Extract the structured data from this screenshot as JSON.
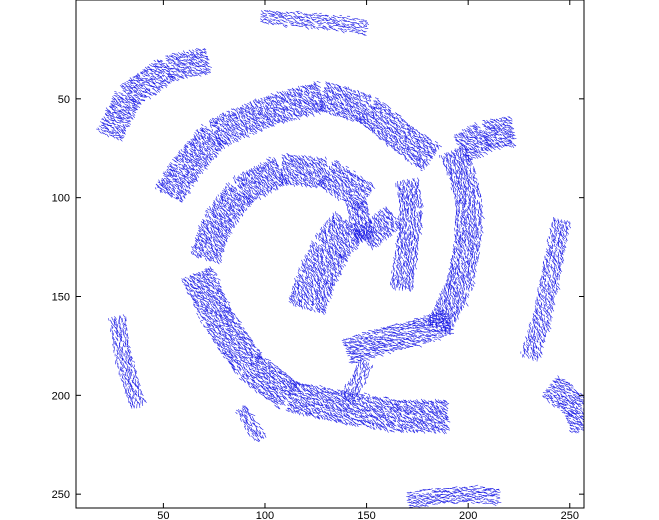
{
  "chart_data": {
    "type": "quiver",
    "title": "",
    "xlabel": "",
    "ylabel": "",
    "xlim": [
      7,
      257
    ],
    "ylim": [
      257,
      0
    ],
    "y_axis_direction": "down",
    "grid": false,
    "vector_color": "#1f1fe6",
    "x_ticks": [
      50,
      100,
      150,
      200,
      250
    ],
    "y_ticks": [
      50,
      100,
      150,
      200,
      250
    ],
    "x_tick_labels": [
      "50",
      "100",
      "150",
      "200",
      "250"
    ],
    "y_tick_labels": [
      "50",
      "100",
      "150",
      "200",
      "250"
    ],
    "bands": [
      {
        "name": "band-top-strip",
        "points": [
          [
            98,
            8
          ],
          [
            120,
            10
          ],
          [
            140,
            12
          ],
          [
            150,
            14
          ]
        ],
        "width": 6,
        "angle": 20
      },
      {
        "name": "band-upper-left-arc",
        "points": [
          [
            23,
            68
          ],
          [
            32,
            48
          ],
          [
            52,
            34
          ],
          [
            72,
            30
          ]
        ],
        "width": 12,
        "angle": 30
      },
      {
        "name": "band-outer-arc",
        "points": [
          [
            52,
            98
          ],
          [
            60,
            85
          ],
          [
            75,
            67
          ],
          [
            100,
            56
          ],
          [
            128,
            48
          ],
          [
            150,
            55
          ],
          [
            168,
            70
          ],
          [
            182,
            80
          ]
        ],
        "width": 14,
        "angle": 45
      },
      {
        "name": "band-middle-arc",
        "points": [
          [
            70,
            130
          ],
          [
            76,
            112
          ],
          [
            88,
            96
          ],
          [
            108,
            85
          ],
          [
            130,
            87
          ],
          [
            150,
            100
          ]
        ],
        "width": 14,
        "angle": 50
      },
      {
        "name": "band-inner-blob",
        "points": [
          [
            120,
            155
          ],
          [
            125,
            140
          ],
          [
            132,
            125
          ],
          [
            142,
            112
          ],
          [
            152,
            110
          ],
          [
            160,
            120
          ]
        ],
        "width": 18,
        "angle": 60
      },
      {
        "name": "band-lower-arc",
        "points": [
          [
            66,
            138
          ],
          [
            76,
            160
          ],
          [
            92,
            185
          ],
          [
            112,
            200
          ],
          [
            135,
            205
          ],
          [
            165,
            210
          ],
          [
            190,
            210
          ]
        ],
        "width": 15,
        "angle": 40
      },
      {
        "name": "band-right-arc-a",
        "points": [
          [
            167,
            145
          ],
          [
            170,
            125
          ],
          [
            172,
            105
          ],
          [
            170,
            90
          ]
        ],
        "width": 10,
        "angle": 80
      },
      {
        "name": "band-right-arc-b",
        "points": [
          [
            185,
            165
          ],
          [
            195,
            145
          ],
          [
            200,
            120
          ],
          [
            200,
            100
          ],
          [
            196,
            85
          ],
          [
            192,
            75
          ]
        ],
        "width": 12,
        "angle": 75
      },
      {
        "name": "band-center-link",
        "points": [
          [
            140,
            178
          ],
          [
            158,
            172
          ],
          [
            175,
            168
          ],
          [
            190,
            162
          ]
        ],
        "width": 12,
        "angle": 10
      },
      {
        "name": "band-upper-right-patch",
        "points": [
          [
            196,
            75
          ],
          [
            208,
            68
          ],
          [
            222,
            66
          ]
        ],
        "width": 14,
        "angle": 30
      },
      {
        "name": "band-far-right",
        "points": [
          [
            230,
            180
          ],
          [
            236,
            160
          ],
          [
            240,
            140
          ],
          [
            244,
            120
          ],
          [
            246,
            110
          ]
        ],
        "width": 8,
        "angle": 70
      },
      {
        "name": "band-left-small",
        "points": [
          [
            27,
            160
          ],
          [
            30,
            178
          ],
          [
            34,
            195
          ],
          [
            38,
            205
          ]
        ],
        "width": 7,
        "angle": 75
      },
      {
        "name": "band-lower-left-small",
        "points": [
          [
            88,
            206
          ],
          [
            93,
            215
          ],
          [
            98,
            222
          ]
        ],
        "width": 5,
        "angle": 50
      },
      {
        "name": "band-bottom-right-patch",
        "points": [
          [
            240,
            195
          ],
          [
            248,
            201
          ],
          [
            254,
            207
          ],
          [
            256,
            218
          ]
        ],
        "width": 12,
        "angle": 30
      },
      {
        "name": "band-bottom-strip",
        "points": [
          [
            170,
            253
          ],
          [
            185,
            251
          ],
          [
            200,
            250
          ],
          [
            215,
            251
          ]
        ],
        "width": 7,
        "angle": 5
      },
      {
        "name": "band-lower-center-streak",
        "points": [
          [
            150,
            183
          ],
          [
            145,
            193
          ],
          [
            140,
            202
          ]
        ],
        "width": 6,
        "angle": 100
      }
    ]
  }
}
